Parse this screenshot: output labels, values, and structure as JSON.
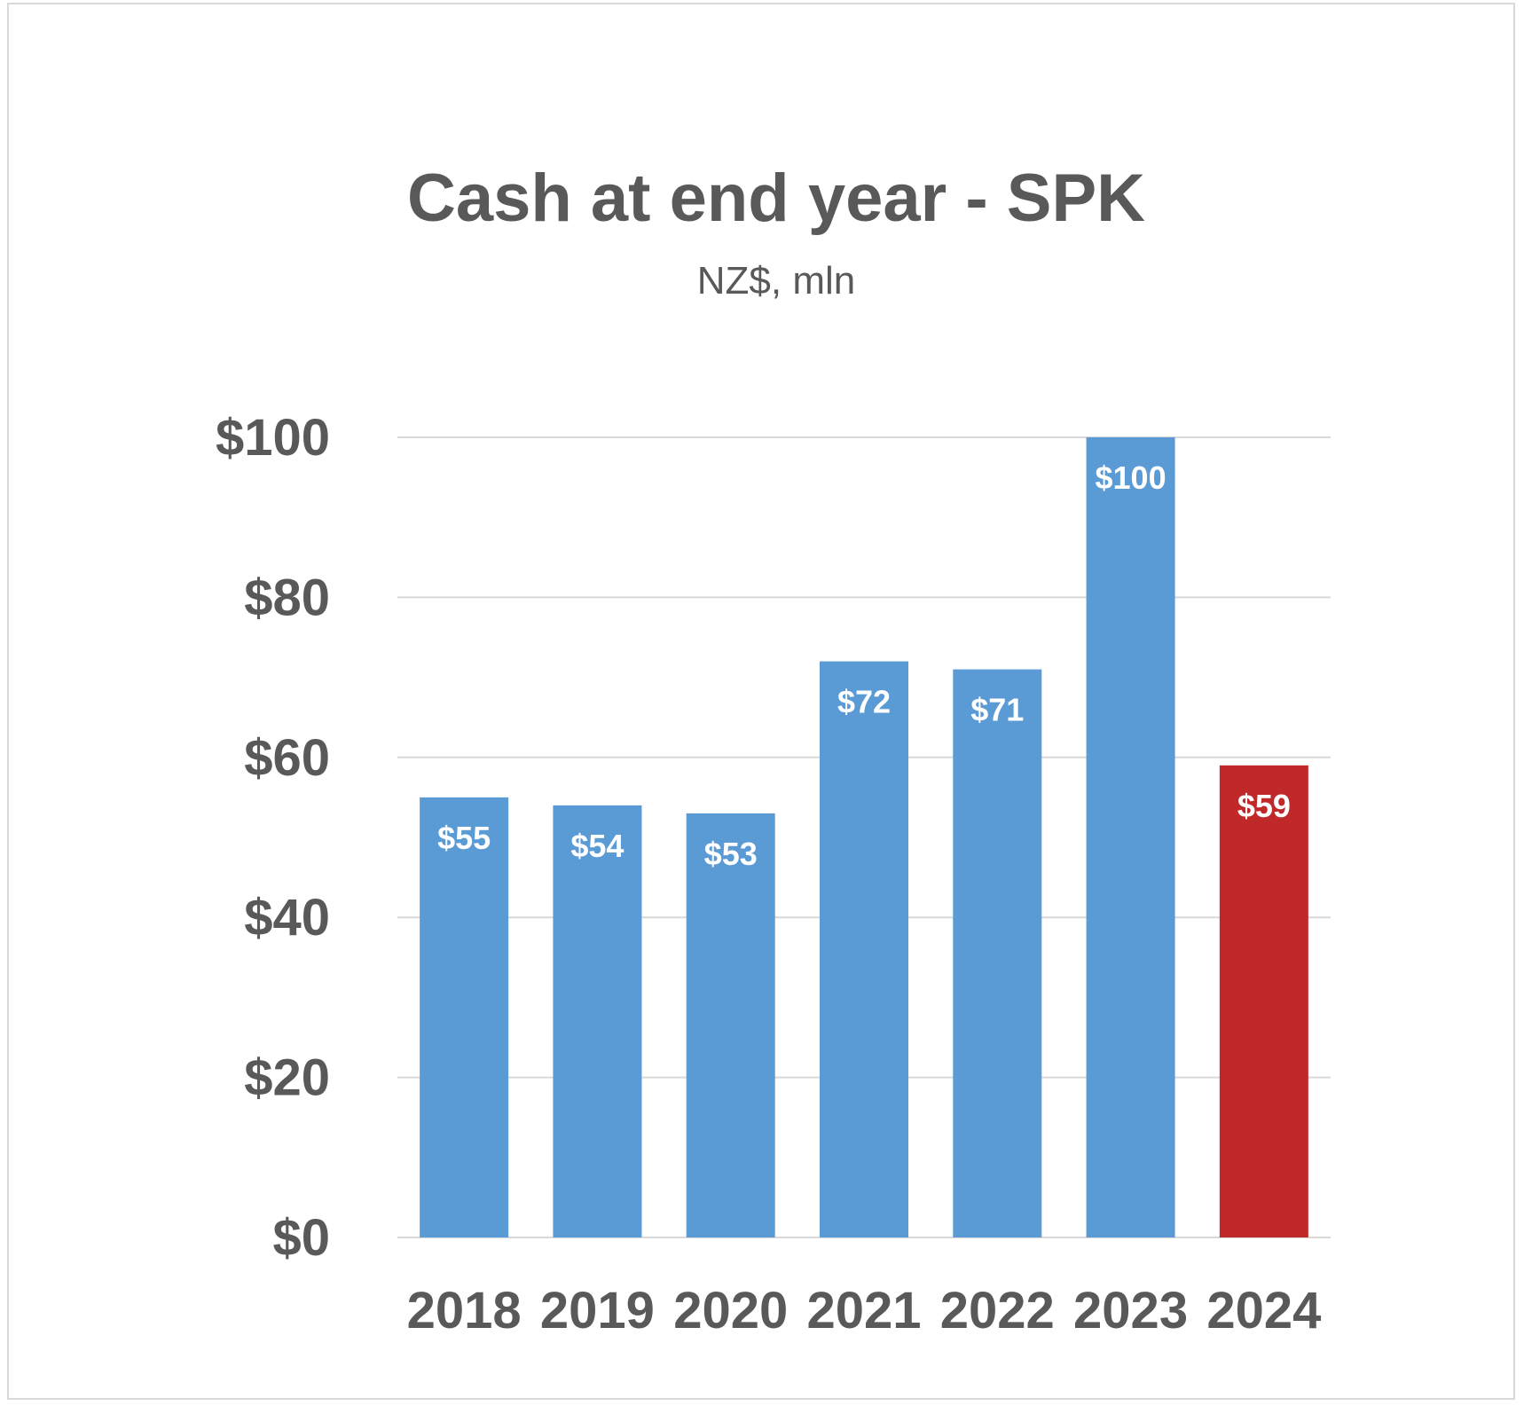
{
  "chart_data": {
    "type": "bar",
    "title": "Cash at end year - SPK",
    "subtitle": "NZ$, mln",
    "categories": [
      "2018",
      "2019",
      "2020",
      "2021",
      "2022",
      "2023",
      "2024"
    ],
    "values": [
      55,
      54,
      53,
      72,
      71,
      100,
      59
    ],
    "data_labels": [
      "$55",
      "$54",
      "$53",
      "$72",
      "$71",
      "$100",
      "$59"
    ],
    "bar_colors": [
      "#5b9bd5",
      "#5b9bd5",
      "#5b9bd5",
      "#5b9bd5",
      "#5b9bd5",
      "#5b9bd5",
      "#c0292a"
    ],
    "yticks": [
      0,
      20,
      40,
      60,
      80,
      100
    ],
    "ytick_labels": [
      "$0",
      "$20",
      "$40",
      "$60",
      "$80",
      "$100"
    ],
    "ylim": [
      0,
      100
    ],
    "xlabel": "",
    "ylabel": "",
    "grid": true,
    "legend": "none"
  }
}
